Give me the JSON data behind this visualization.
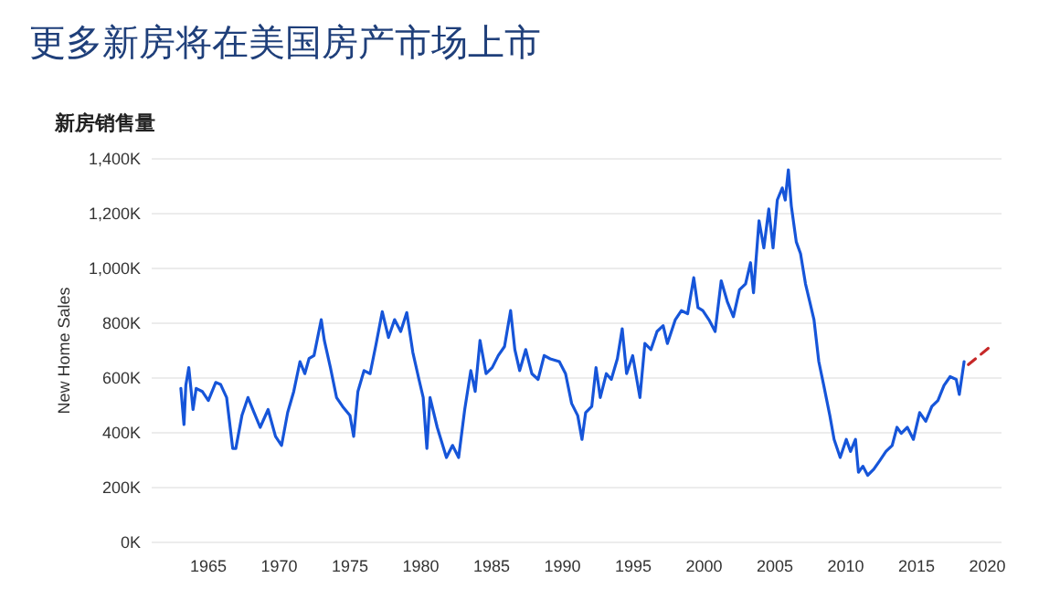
{
  "chart_data": {
    "type": "line",
    "title": "更多新房将在美国房产市场上市",
    "subtitle": "新房销售量",
    "ylabel": "New Home Sales",
    "xlim": [
      1961,
      2021
    ],
    "xticks": [
      1965,
      1970,
      1975,
      1980,
      1985,
      1990,
      1995,
      2000,
      2005,
      2010,
      2015,
      2020
    ],
    "ylim": [
      0,
      1400
    ],
    "yticks": [
      {
        "value": 0,
        "label": "0K"
      },
      {
        "value": 200,
        "label": "200K"
      },
      {
        "value": 400,
        "label": "400K"
      },
      {
        "value": 600,
        "label": "600K"
      },
      {
        "value": 800,
        "label": "800K"
      },
      {
        "value": 1000,
        "label": "1,000K"
      },
      {
        "value": 1200,
        "label": "1,200K"
      },
      {
        "value": 1400,
        "label": "1,400K"
      }
    ],
    "grid": "y",
    "series": [
      {
        "color": "#1655d9",
        "line_style": "solid",
        "x": [
          1963.06,
          1963.28,
          1963.41,
          1963.62,
          1963.92,
          1964.14,
          1964.57,
          1965,
          1965.52,
          1965.86,
          1966.29,
          1966.72,
          1966.94,
          1967.37,
          1967.8,
          1968.23,
          1968.66,
          1969.22,
          1969.74,
          1970.17,
          1970.6,
          1971.03,
          1971.47,
          1971.81,
          1972.11,
          1972.46,
          1972.97,
          1973.19,
          1973.62,
          1974.05,
          1974.48,
          1975,
          1975.26,
          1975.56,
          1975.99,
          1976.42,
          1976.85,
          1977.28,
          1977.72,
          1978.15,
          1978.58,
          1979.01,
          1979.44,
          1979.87,
          1980.17,
          1980.43,
          1980.65,
          1981.16,
          1981.81,
          1982.24,
          1982.67,
          1983.1,
          1983.53,
          1983.84,
          1984.18,
          1984.61,
          1985.04,
          1985.47,
          1985.91,
          1986.34,
          1986.64,
          1986.98,
          1987.41,
          1987.84,
          1988.28,
          1988.71,
          1989.14,
          1989.78,
          1990.22,
          1990.65,
          1991.08,
          1991.38,
          1991.64,
          1992.07,
          1992.37,
          1992.67,
          1993.1,
          1993.45,
          1993.88,
          1994.22,
          1994.53,
          1994.96,
          1995.47,
          1995.82,
          1996.25,
          1996.68,
          1997.11,
          1997.41,
          1997.97,
          1998.4,
          1998.84,
          1999.27,
          1999.57,
          1999.91,
          2000.34,
          2000.78,
          2001.21,
          2001.64,
          2002.07,
          2002.5,
          2002.93,
          2003.28,
          2003.49,
          2003.88,
          2004.22,
          2004.57,
          2004.87,
          2005.17,
          2005.52,
          2005.73,
          2005.95,
          2006.16,
          2006.51,
          2006.81,
          2007.16,
          2007.46,
          2007.76,
          2008.1,
          2008.45,
          2008.88,
          2009.18,
          2009.61,
          2010.04,
          2010.34,
          2010.69,
          2010.9,
          2011.21,
          2011.55,
          2011.98,
          2012.41,
          2012.84,
          2013.28,
          2013.62,
          2013.92,
          2014.35,
          2014.78,
          2015.22,
          2015.65,
          2016.08,
          2016.51,
          2016.94,
          2017.37,
          2017.8,
          2018.02,
          2018.36
        ],
        "values": [
          562,
          430,
          573,
          638,
          485,
          562,
          551,
          518,
          584,
          577,
          529,
          343,
          343,
          463,
          529,
          474,
          420,
          485,
          387,
          354,
          474,
          551,
          660,
          616,
          671,
          682,
          813,
          737,
          638,
          529,
          496,
          463,
          387,
          551,
          627,
          616,
          726,
          842,
          748,
          813,
          770,
          839,
          693,
          595,
          529,
          343,
          529,
          420,
          310,
          354,
          310,
          485,
          627,
          551,
          737,
          616,
          638,
          682,
          715,
          846,
          704,
          627,
          704,
          616,
          595,
          682,
          670,
          660,
          616,
          507,
          463,
          376,
          474,
          496,
          638,
          529,
          616,
          595,
          671,
          780,
          616,
          682,
          529,
          726,
          704,
          770,
          791,
          726,
          813,
          846,
          835,
          966,
          857,
          846,
          813,
          770,
          955,
          879,
          824,
          922,
          944,
          1021,
          911,
          1174,
          1075,
          1217,
          1075,
          1250,
          1294,
          1250,
          1360,
          1228,
          1097,
          1054,
          944,
          879,
          813,
          660,
          573,
          463,
          376,
          310,
          376,
          332,
          376,
          256,
          278,
          245,
          267,
          299,
          332,
          354,
          420,
          398,
          420,
          376,
          474,
          442,
          496,
          518,
          573,
          605,
          595,
          540,
          660
        ]
      },
      {
        "color": "#c62828",
        "line_style": "dashed",
        "x": [
          2018.66,
          2020.1
        ],
        "values": [
          649,
          710
        ]
      }
    ]
  }
}
